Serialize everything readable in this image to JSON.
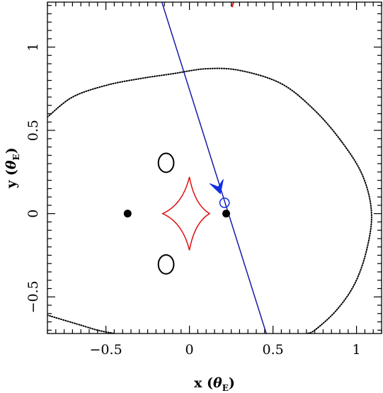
{
  "chart_data": {
    "type": "scatter",
    "title": "",
    "xlabel": "x (θ_E)",
    "ylabel": "y (θ_E)",
    "xlabel_parts": {
      "main": "x (",
      "theta": "θ",
      "sub": "E",
      "close": ")"
    },
    "ylabel_parts": {
      "main": "y (",
      "theta": "θ",
      "sub": "E",
      "close": ")"
    },
    "xlim": [
      -0.85,
      1.15
    ],
    "ylim": [
      -0.72,
      1.27
    ],
    "xticks": [
      {
        "v": -0.5,
        "label": "−0.5"
      },
      {
        "v": 0.0,
        "label": "0"
      },
      {
        "v": 0.5,
        "label": "0.5"
      },
      {
        "v": 1.0,
        "label": "1"
      }
    ],
    "yticks": [
      {
        "v": -0.5,
        "label": "−0.5"
      },
      {
        "v": 0.0,
        "label": "0"
      },
      {
        "v": 0.5,
        "label": "0.5"
      },
      {
        "v": 1.0,
        "label": "1"
      }
    ],
    "colors": {
      "caustic": "#dd1111",
      "trajectory": "#1a1aa8",
      "source": "#1030e0",
      "images": "#000000",
      "masses": "#000000",
      "outer_contour": "#000000"
    },
    "masses": [
      {
        "x": -0.37,
        "y": 0.0
      },
      {
        "x": 0.22,
        "y": 0.0
      }
    ],
    "caustic": {
      "center": [
        0.0,
        0.0
      ],
      "x_left": -0.16,
      "x_right": 0.12,
      "y_top": 0.22,
      "y_bottom": -0.22,
      "small_arc": {
        "x": 0.255,
        "y_start": 1.24,
        "y_end": 1.27
      }
    },
    "trajectory": {
      "points": [
        [
          -0.165,
          1.27
        ],
        [
          0.46,
          -0.72
        ]
      ],
      "arrow_at": [
        0.185,
        0.12
      ]
    },
    "source": {
      "x": 0.21,
      "y": 0.065,
      "r": 0.028
    },
    "lensed_images": [
      {
        "x": -0.14,
        "y": 0.305,
        "rx": 0.046,
        "ry": 0.057
      },
      {
        "x": -0.14,
        "y": -0.305,
        "rx": 0.046,
        "ry": 0.057
      }
    ],
    "outer_contour": [
      [
        -0.85,
        0.58
      ],
      [
        -0.7,
        0.7
      ],
      [
        -0.5,
        0.77
      ],
      [
        -0.3,
        0.81
      ],
      [
        -0.1,
        0.84
      ],
      [
        0.1,
        0.87
      ],
      [
        0.3,
        0.86
      ],
      [
        0.55,
        0.78
      ],
      [
        0.75,
        0.62
      ],
      [
        0.92,
        0.42
      ],
      [
        1.04,
        0.22
      ],
      [
        1.09,
        0.0
      ],
      [
        1.06,
        -0.22
      ],
      [
        0.99,
        -0.42
      ],
      [
        0.88,
        -0.58
      ],
      [
        0.75,
        -0.7
      ],
      [
        0.7,
        -0.72
      ]
    ],
    "outer_contour_lower_left": [
      [
        -0.85,
        -0.61
      ],
      [
        -0.65,
        -0.67
      ],
      [
        -0.55,
        -0.7
      ],
      [
        -0.45,
        -0.72
      ]
    ]
  }
}
